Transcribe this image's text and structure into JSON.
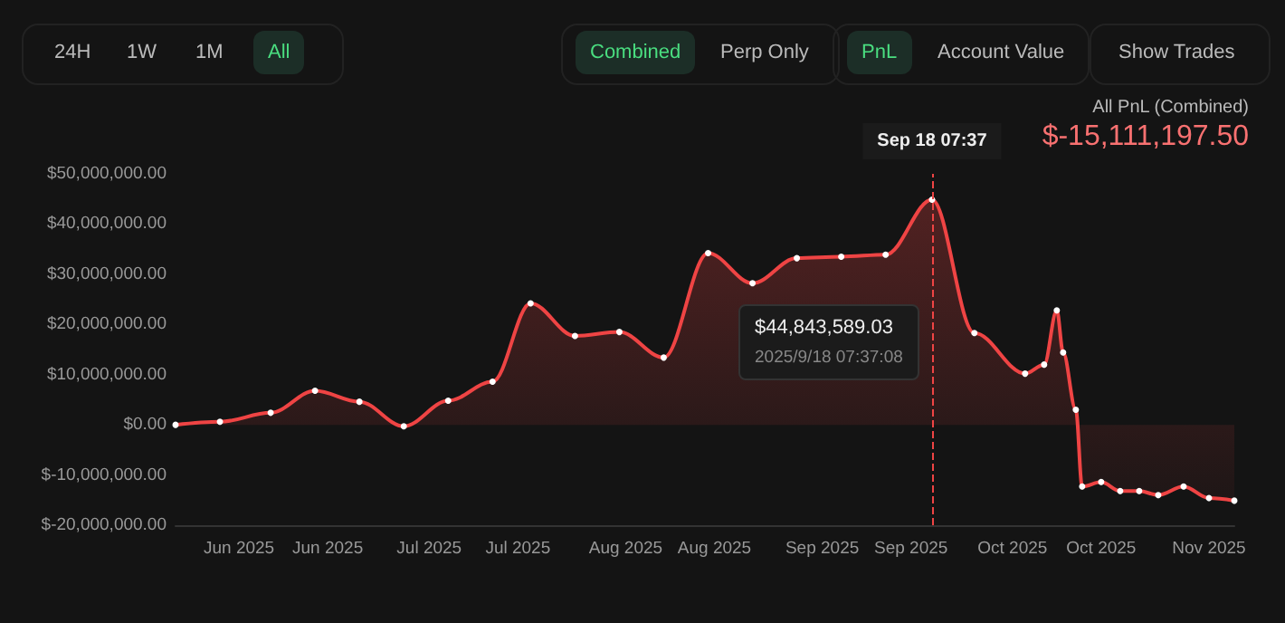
{
  "chart_data": {
    "type": "area",
    "title": "$-15,111,197.50",
    "subtitle": "All PnL (Combined)",
    "annotations": [
      "24H",
      "1W",
      "1M",
      "All",
      "Combined",
      "Perp Only",
      "PnL",
      "Account Value",
      "Show Trades",
      "$44,843,589.03\n2025/9/18 07:37:08"
    ],
    "x": [
      "2025-05-22",
      "2025-05-29",
      "2025-06-06",
      "2025-06-13",
      "2025-06-20",
      "2025-06-27",
      "2025-07-04",
      "2025-07-11",
      "2025-07-17",
      "2025-07-24",
      "2025-07-31",
      "2025-08-07",
      "2025-08-14",
      "2025-08-21",
      "2025-08-28",
      "2025-09-04",
      "2025-09-11",
      "2025-09-18T07:37",
      "2025-09-25",
      "2025-10-03",
      "2025-10-06",
      "2025-10-08",
      "2025-10-09",
      "2025-10-11",
      "2025-10-12",
      "2025-10-15",
      "2025-10-18",
      "2025-10-21",
      "2025-10-24",
      "2025-10-28",
      "2025-11-01",
      "2025-11-05"
    ],
    "series": [
      {
        "color": "#ef4444",
        "values": [
          0,
          600000,
          2400000,
          6800000,
          4600000,
          -300000,
          4800000,
          8600000,
          24200000,
          17700000,
          18500000,
          13400000,
          34200000,
          28200000,
          33200000,
          33500000,
          33900000,
          44843589.03,
          18300000,
          10200000,
          12000000,
          22800000,
          14400000,
          3000000,
          -12300000,
          -11400000,
          -13200000,
          -13200000,
          -14000000,
          -12300000,
          -14600000,
          -15111197.5
        ]
      }
    ],
    "xlim": [
      "2025-05-22",
      "2025-11-05"
    ],
    "xticks": [
      {
        "value": "2025-06-01",
        "label": "Jun 2025"
      },
      {
        "value": "2025-06-15",
        "label": "Jun 2025"
      },
      {
        "value": "2025-07-01",
        "label": "Jul 2025"
      },
      {
        "value": "2025-07-15",
        "label": "Jul 2025"
      },
      {
        "value": "2025-08-01",
        "label": "Aug 2025"
      },
      {
        "value": "2025-08-15",
        "label": "Aug 2025"
      },
      {
        "value": "2025-09-01",
        "label": "Sep 2025"
      },
      {
        "value": "2025-09-15",
        "label": "Sep 2025"
      },
      {
        "value": "2025-10-01",
        "label": "Oct 2025"
      },
      {
        "value": "2025-10-15",
        "label": "Oct 2025"
      },
      {
        "value": "2025-11-01",
        "label": "Nov 2025"
      }
    ],
    "ylim": [
      -20000000,
      50000000
    ],
    "yticks": [
      {
        "value": -20000000,
        "label": "$-20,000,000.00"
      },
      {
        "value": -10000000,
        "label": "$-10,000,000.00"
      },
      {
        "value": 0,
        "label": "$0.00"
      },
      {
        "value": 10000000,
        "label": "$10,000,000.00"
      },
      {
        "value": 20000000,
        "label": "$20,000,000.00"
      },
      {
        "value": 30000000,
        "label": "$30,000,000.00"
      },
      {
        "value": 40000000,
        "label": "$40,000,000.00"
      },
      {
        "value": 50000000,
        "label": "$50,000,000.00"
      }
    ],
    "ref_lines": [
      {
        "axis": "x",
        "value": "2025-09-18T07:37",
        "label": "Sep 18 07:37",
        "color": "#ef4444",
        "line_style": "dashed"
      }
    ],
    "grid": false,
    "marker": "circle",
    "line_style": "solid"
  }
}
